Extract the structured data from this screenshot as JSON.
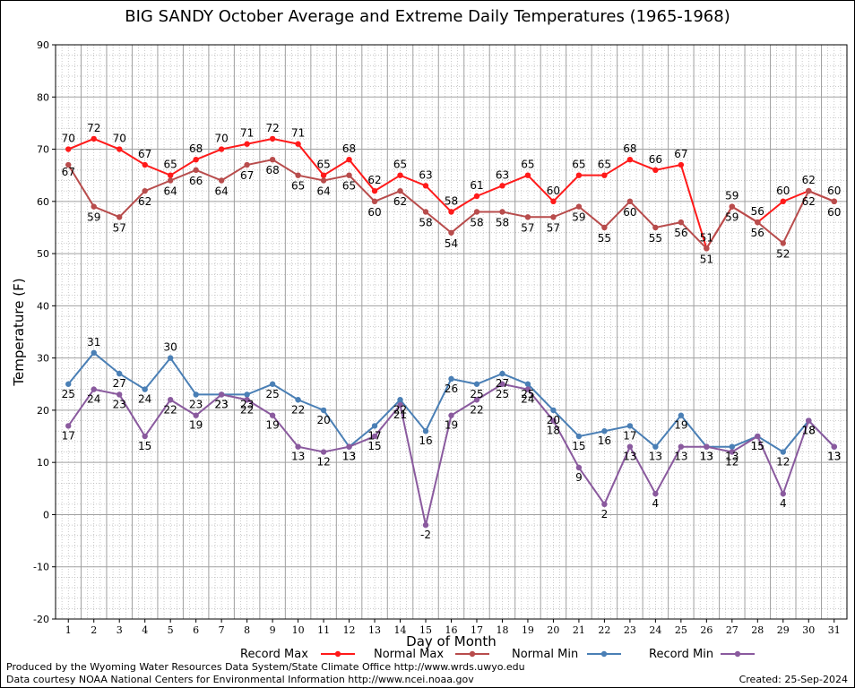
{
  "title": "BIG SANDY October Average and Extreme Daily Temperatures (1965-1968)",
  "footer": {
    "produced_by": "Produced by the Wyoming Water Resources Data System/State Climate Office http://www.wrds.uwyo.edu",
    "courtesy": "Data courtesy NOAA National Centers for Environmental Information http://www.ncei.noaa.gov",
    "created": "Created:  25-Sep-2024"
  },
  "chart_data": {
    "type": "line",
    "title": "BIG SANDY October Average and Extreme Daily Temperatures (1965-1968)",
    "xlabel": "Day of Month",
    "ylabel": "Temperature (F)",
    "ylim": [
      -20,
      90
    ],
    "yticks": [
      -20,
      -10,
      0,
      10,
      20,
      30,
      40,
      50,
      60,
      70,
      80,
      90
    ],
    "x": [
      1,
      2,
      3,
      4,
      5,
      6,
      7,
      8,
      9,
      10,
      11,
      12,
      13,
      14,
      15,
      16,
      17,
      18,
      19,
      20,
      21,
      22,
      23,
      24,
      25,
      26,
      27,
      28,
      29,
      30,
      31
    ],
    "grid": true,
    "legend": "bottom",
    "series": [
      {
        "name": "Record Max",
        "color": "#ff1a1a",
        "values": [
          70,
          72,
          70,
          67,
          65,
          68,
          70,
          71,
          72,
          71,
          65,
          68,
          62,
          65,
          63,
          58,
          61,
          63,
          65,
          60,
          65,
          65,
          68,
          66,
          67,
          51,
          59,
          56,
          60,
          62,
          60
        ]
      },
      {
        "name": "Normal Max",
        "color": "#b84c4c",
        "values": [
          67,
          59,
          57,
          62,
          64,
          66,
          64,
          67,
          68,
          65,
          64,
          65,
          60,
          62,
          58,
          54,
          58,
          58,
          57,
          57,
          59,
          55,
          60,
          55,
          56,
          51,
          59,
          56,
          52,
          62,
          60
        ]
      },
      {
        "name": "Normal Min",
        "color": "#4a7fb5",
        "values": [
          25,
          31,
          27,
          24,
          30,
          23,
          23,
          23,
          25,
          22,
          20,
          13,
          17,
          22,
          16,
          26,
          25,
          27,
          25,
          20,
          15,
          16,
          17,
          13,
          19,
          13,
          13,
          15,
          12,
          18,
          13
        ]
      },
      {
        "name": "Record Min",
        "color": "#8a5a9e",
        "values": [
          17,
          24,
          23,
          15,
          22,
          19,
          23,
          22,
          19,
          13,
          12,
          13,
          15,
          21,
          -2,
          19,
          22,
          25,
          24,
          18,
          9,
          2,
          13,
          4,
          13,
          13,
          12,
          15,
          4,
          18,
          13
        ]
      }
    ]
  }
}
